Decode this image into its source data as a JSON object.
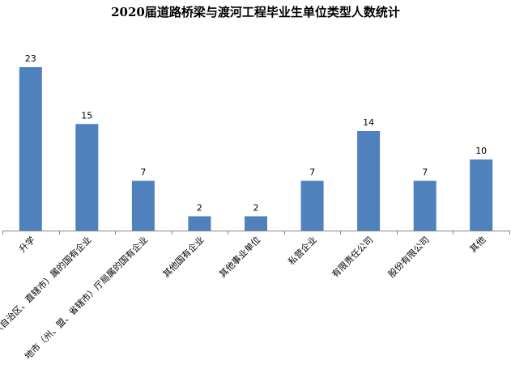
{
  "chart_data": {
    "type": "bar",
    "title": "2020届道路桥梁与渡河工程毕业生单位类型人数统计",
    "categories": [
      "升学",
      "省（自治区、直辖市）属的国有企业",
      "地市（州、盟、省辖市）厅局属的国有企业",
      "其他国有企业",
      "其他事业单位",
      "私营企业",
      "有限责任公司",
      "股份有限公司",
      "其他"
    ],
    "values": [
      23,
      15,
      7,
      2,
      2,
      7,
      14,
      7,
      10
    ],
    "bar_color": "#4F81BD",
    "data_labels": true,
    "gridlines": false,
    "legend": "none"
  }
}
